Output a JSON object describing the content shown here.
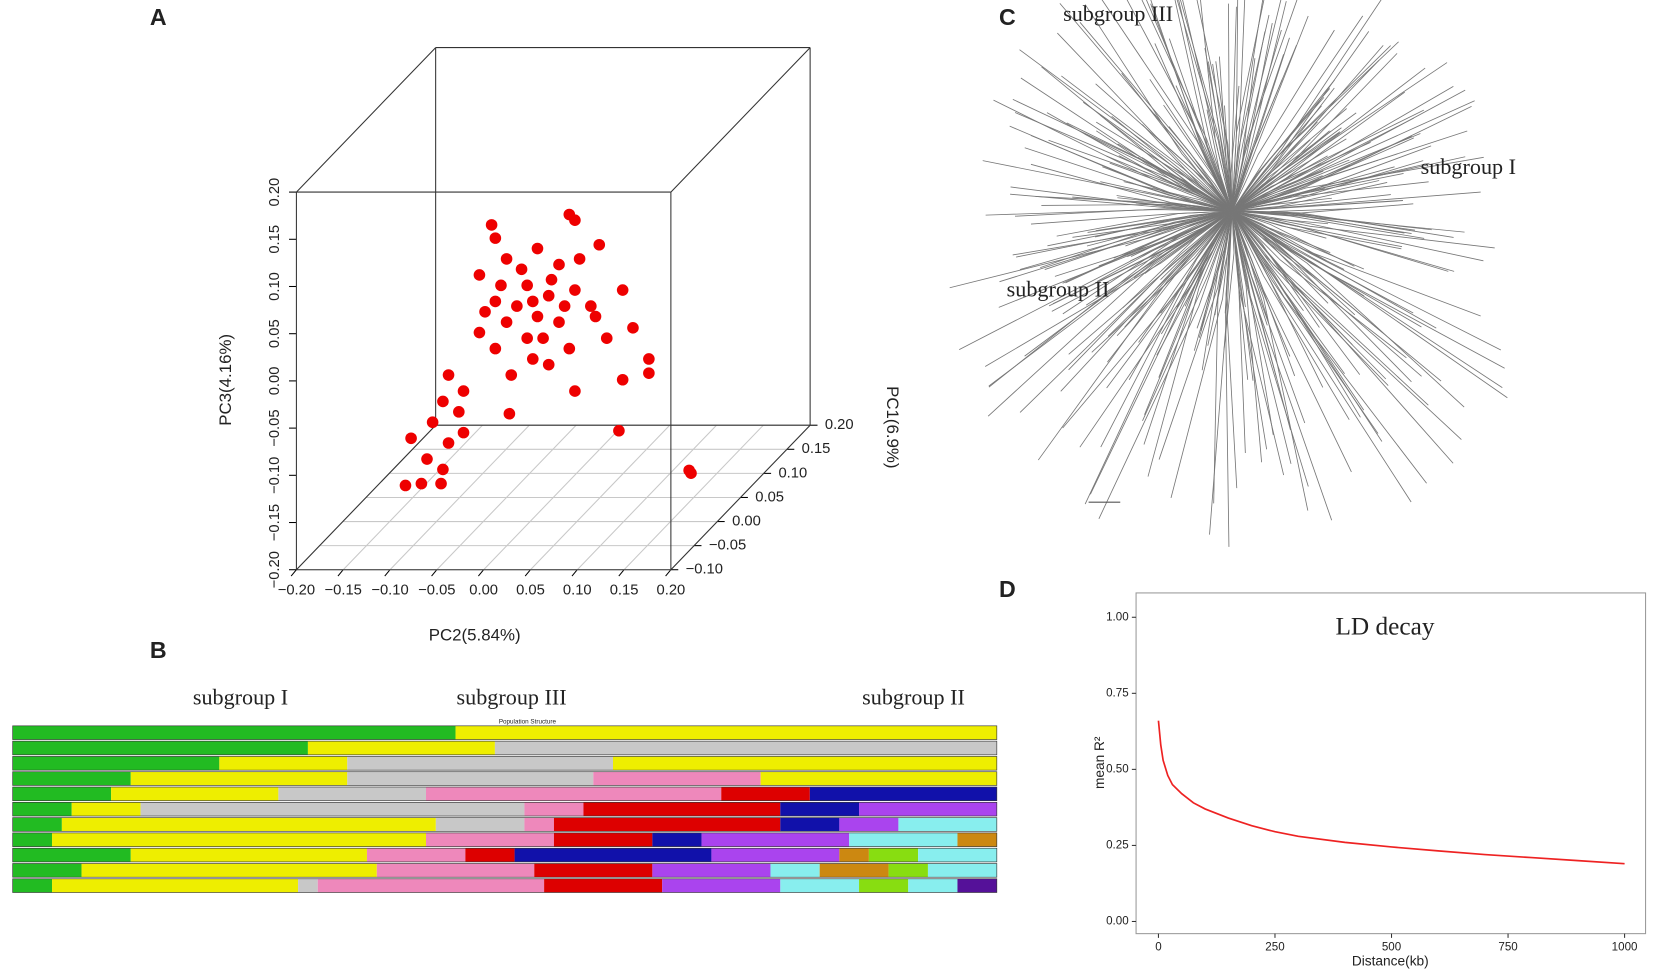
{
  "chart_data": [
    {
      "type": "scatter3d",
      "panel": "A",
      "xlabel": "PC2(5.84%)",
      "ylabel": "PC3(4.16%)",
      "zlabel": "PC1(6.9%)",
      "xlim": [
        -0.2,
        0.2
      ],
      "ylim": [
        -0.2,
        0.2
      ],
      "zlim": [
        -0.1,
        0.2
      ],
      "xticks": [
        {
          "value": -0.2,
          "label": "−0.20"
        },
        {
          "value": -0.15,
          "label": "−0.15"
        },
        {
          "value": -0.1,
          "label": "−0.10"
        },
        {
          "value": -0.05,
          "label": "−0.05"
        },
        {
          "value": 0,
          "label": "0.00"
        },
        {
          "value": 0.05,
          "label": "0.05"
        },
        {
          "value": 0.1,
          "label": "0.10"
        },
        {
          "value": 0.15,
          "label": "0.15"
        },
        {
          "value": 0.2,
          "label": "0.20"
        }
      ],
      "yticks": [
        {
          "value": -0.2,
          "label": "−0.20"
        },
        {
          "value": -0.15,
          "label": "−0.15"
        },
        {
          "value": -0.1,
          "label": "−0.10"
        },
        {
          "value": -0.05,
          "label": "−0.05"
        },
        {
          "value": 0,
          "label": "0.00"
        },
        {
          "value": 0.05,
          "label": "0.05"
        },
        {
          "value": 0.1,
          "label": "0.10"
        },
        {
          "value": 0.15,
          "label": "0.15"
        },
        {
          "value": 0.2,
          "label": "0.20"
        }
      ],
      "zticks": [
        {
          "value": -0.1,
          "label": "−0.10"
        },
        {
          "value": -0.05,
          "label": "−0.05"
        },
        {
          "value": 0,
          "label": "0.00"
        },
        {
          "value": 0.05,
          "label": "0.05"
        },
        {
          "value": 0.1,
          "label": "0.10"
        },
        {
          "value": 0.15,
          "label": "0.15"
        },
        {
          "value": 0.2,
          "label": "0.20"
        }
      ],
      "color": "#ee0000",
      "x": [
        -0.051,
        0.032,
        0.038,
        -0.047,
        -0.002,
        0.064,
        -0.035,
        0.021,
        -0.064,
        0.089,
        -0.013,
        0.01,
        -0.047,
        0.038,
        -0.024,
        -0.002,
        0.055,
        -0.035,
        -0.064,
        0.021,
        0.1,
        0.072,
        -0.013,
        0.032,
        -0.047,
        0.117,
        0.01,
        0.089,
        0.117,
        0.038,
        -0.03,
        -0.097,
        -0.081,
        -0.103,
        -0.086,
        -0.032,
        -0.114,
        -0.081,
        -0.137,
        -0.097,
        -0.12,
        -0.103,
        -0.143,
        -0.126,
        -0.105,
        0.085,
        0.162,
        0.16,
        -0.019,
        -0.007,
        0.013,
        -0.058,
        0.043,
        0.004,
        0.06,
        -0.041,
        0.027,
        -0.007
      ],
      "y": [
        0.104,
        0.115,
        0.109,
        0.09,
        0.079,
        0.083,
        0.068,
        0.062,
        0.051,
        0.035,
        0.04,
        0.029,
        0.023,
        0.035,
        0.018,
        0.007,
        0.018,
        0.001,
        -0.01,
        0.001,
        -0.005,
        -0.016,
        -0.016,
        -0.027,
        -0.027,
        -0.038,
        -0.044,
        -0.06,
        -0.053,
        -0.072,
        -0.055,
        -0.055,
        -0.072,
        -0.083,
        -0.094,
        -0.096,
        -0.105,
        -0.116,
        -0.122,
        -0.127,
        -0.144,
        -0.155,
        -0.172,
        -0.17,
        -0.17,
        -0.114,
        -0.159,
        -0.156,
        0.057,
        0.023,
        0.046,
        0.012,
        0.068,
        -0.016,
        0.007,
        0.04,
        0.018,
        -0.038
      ],
      "z": [
        0.02,
        0.02,
        0.02,
        0.02,
        0.02,
        0.02,
        0.02,
        0.02,
        0.02,
        0.02,
        0.02,
        0.02,
        0.02,
        0.02,
        0.02,
        0.02,
        0.02,
        0.02,
        0.02,
        0.02,
        0.02,
        0.02,
        0.02,
        0.02,
        0.02,
        0.02,
        0.02,
        0.02,
        0.02,
        0.02,
        0.02,
        0.02,
        0.02,
        0.02,
        0.02,
        0.02,
        0.02,
        0.02,
        0.02,
        0.02,
        0.02,
        0.02,
        0.02,
        0.02,
        0.02,
        0.02,
        0.02,
        0.02,
        0.02,
        0.02,
        0.02,
        0.02,
        0.02,
        0.02,
        0.02,
        0.02,
        0.02,
        0.02
      ]
    },
    {
      "type": "structure",
      "panel": "B",
      "title": "Population Structure",
      "labels": [
        "subgroup I",
        "subgroup III",
        "subgroup II"
      ],
      "rows": [
        {
          "segments": [
            {
              "color": "#22bb22",
              "value": 45
            },
            {
              "color": "#eeee00",
              "value": 55
            }
          ]
        },
        {
          "segments": [
            {
              "color": "#22bb22",
              "value": 30
            },
            {
              "color": "#eeee00",
              "value": 19
            },
            {
              "color": "#c8c8c8",
              "value": 51
            }
          ]
        },
        {
          "segments": [
            {
              "color": "#22bb22",
              "value": 21
            },
            {
              "color": "#eeee00",
              "value": 13
            },
            {
              "color": "#c8c8c8",
              "value": 27
            },
            {
              "color": "#eeee00",
              "value": 39
            }
          ]
        },
        {
          "segments": [
            {
              "color": "#22bb22",
              "value": 12
            },
            {
              "color": "#eeee00",
              "value": 22
            },
            {
              "color": "#c8c8c8",
              "value": 25
            },
            {
              "color": "#ee88bb",
              "value": 17
            },
            {
              "color": "#eeee00",
              "value": 24
            }
          ]
        },
        {
          "segments": [
            {
              "color": "#22bb22",
              "value": 10
            },
            {
              "color": "#eeee00",
              "value": 17
            },
            {
              "color": "#c8c8c8",
              "value": 15
            },
            {
              "color": "#ee88bb",
              "value": 30
            },
            {
              "color": "#dd0000",
              "value": 9
            },
            {
              "color": "#1111aa",
              "value": 19
            }
          ]
        },
        {
          "segments": [
            {
              "color": "#22bb22",
              "value": 6
            },
            {
              "color": "#eeee00",
              "value": 7
            },
            {
              "color": "#c8c8c8",
              "value": 39
            },
            {
              "color": "#ee88bb",
              "value": 6
            },
            {
              "color": "#dd0000",
              "value": 20
            },
            {
              "color": "#1111aa",
              "value": 8
            },
            {
              "color": "#aa44ee",
              "value": 14
            }
          ]
        },
        {
          "segments": [
            {
              "color": "#22bb22",
              "value": 5
            },
            {
              "color": "#eeee00",
              "value": 38
            },
            {
              "color": "#c8c8c8",
              "value": 9
            },
            {
              "color": "#ee88bb",
              "value": 3
            },
            {
              "color": "#dd0000",
              "value": 23
            },
            {
              "color": "#1111aa",
              "value": 6
            },
            {
              "color": "#aa44ee",
              "value": 6
            },
            {
              "color": "#88eeee",
              "value": 10
            }
          ]
        },
        {
          "segments": [
            {
              "color": "#22bb22",
              "value": 4
            },
            {
              "color": "#eeee00",
              "value": 38
            },
            {
              "color": "#ee88bb",
              "value": 13
            },
            {
              "color": "#dd0000",
              "value": 10
            },
            {
              "color": "#1111aa",
              "value": 5
            },
            {
              "color": "#aa44ee",
              "value": 15
            },
            {
              "color": "#88eeee",
              "value": 11
            },
            {
              "color": "#cc8811",
              "value": 4
            }
          ]
        },
        {
          "segments": [
            {
              "color": "#22bb22",
              "value": 12
            },
            {
              "color": "#eeee00",
              "value": 24
            },
            {
              "color": "#ee88bb",
              "value": 10
            },
            {
              "color": "#dd0000",
              "value": 5
            },
            {
              "color": "#1111aa",
              "value": 20
            },
            {
              "color": "#aa44ee",
              "value": 13
            },
            {
              "color": "#cc8811",
              "value": 3
            },
            {
              "color": "#88dd11",
              "value": 5
            },
            {
              "color": "#88eeee",
              "value": 8
            }
          ]
        },
        {
          "segments": [
            {
              "color": "#22bb22",
              "value": 7
            },
            {
              "color": "#eeee00",
              "value": 30
            },
            {
              "color": "#ee88bb",
              "value": 16
            },
            {
              "color": "#dd0000",
              "value": 12
            },
            {
              "color": "#aa44ee",
              "value": 12
            },
            {
              "color": "#88eeee",
              "value": 5
            },
            {
              "color": "#cc8811",
              "value": 7
            },
            {
              "color": "#88dd11",
              "value": 4
            },
            {
              "color": "#88eeee",
              "value": 7
            }
          ]
        },
        {
          "segments": [
            {
              "color": "#22bb22",
              "value": 4
            },
            {
              "color": "#eeee00",
              "value": 25
            },
            {
              "color": "#c8c8c8",
              "value": 2
            },
            {
              "color": "#ee88bb",
              "value": 23
            },
            {
              "color": "#dd0000",
              "value": 12
            },
            {
              "color": "#aa44ee",
              "value": 12
            },
            {
              "color": "#88eeee",
              "value": 8
            },
            {
              "color": "#88dd11",
              "value": 5
            },
            {
              "color": "#88eeee",
              "value": 5
            },
            {
              "color": "#551199",
              "value": 4
            }
          ]
        }
      ]
    },
    {
      "type": "tree",
      "panel": "C",
      "labels": [
        "subgroup III",
        "subgroup I",
        "subgroup II"
      ]
    },
    {
      "type": "line",
      "panel": "D",
      "title": "LD decay",
      "xlabel": "Distance(kb)",
      "ylabel": "mean R²",
      "xlim": [
        -48,
        1045
      ],
      "ylim": [
        -0.04,
        1.08
      ],
      "xticks": [
        0,
        250,
        500,
        750,
        1000
      ],
      "yticks": [
        {
          "value": 0,
          "label": "0.00"
        },
        {
          "value": 0.25,
          "label": "0.25"
        },
        {
          "value": 0.5,
          "label": "0.50"
        },
        {
          "value": 0.75,
          "label": "0.75"
        },
        {
          "value": 1,
          "label": "1.00"
        }
      ],
      "color": "#ee2222",
      "x": [
        0,
        5,
        10,
        20,
        30,
        50,
        75,
        100,
        150,
        200,
        250,
        300,
        400,
        500,
        600,
        700,
        800,
        900,
        1000
      ],
      "values": [
        0.66,
        0.58,
        0.53,
        0.48,
        0.45,
        0.42,
        0.39,
        0.37,
        0.34,
        0.315,
        0.295,
        0.28,
        0.26,
        0.245,
        0.232,
        0.22,
        0.21,
        0.2,
        0.19
      ]
    }
  ]
}
